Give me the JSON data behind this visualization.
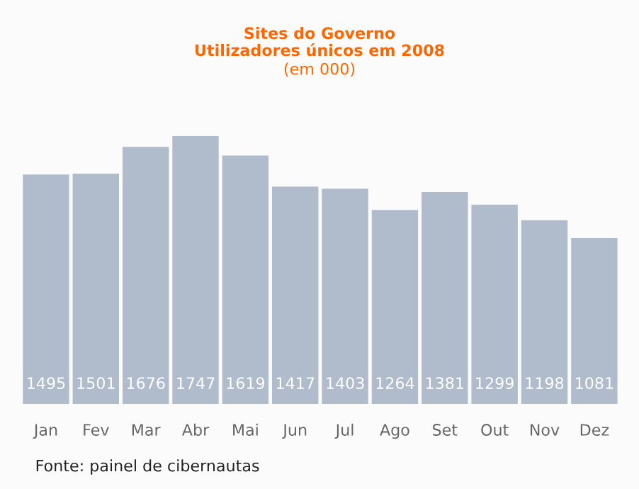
{
  "chart_data": {
    "type": "bar",
    "title": "Sites do Governo\nUtilizadores únicos em 2008",
    "subtitle": "(em 000)",
    "categories": [
      "Jan",
      "Fev",
      "Mar",
      "Abr",
      "Mai",
      "Jun",
      "Jul",
      "Ago",
      "Set",
      "Out",
      "Nov",
      "Dez"
    ],
    "values": [
      1495,
      1501,
      1676,
      1747,
      1619,
      1417,
      1403,
      1264,
      1381,
      1299,
      1198,
      1081
    ],
    "color": "#b0bccc",
    "data_labels": true,
    "grid": false,
    "legend": false,
    "annotations": [
      "Fonte: painel de cibernautas"
    ]
  }
}
